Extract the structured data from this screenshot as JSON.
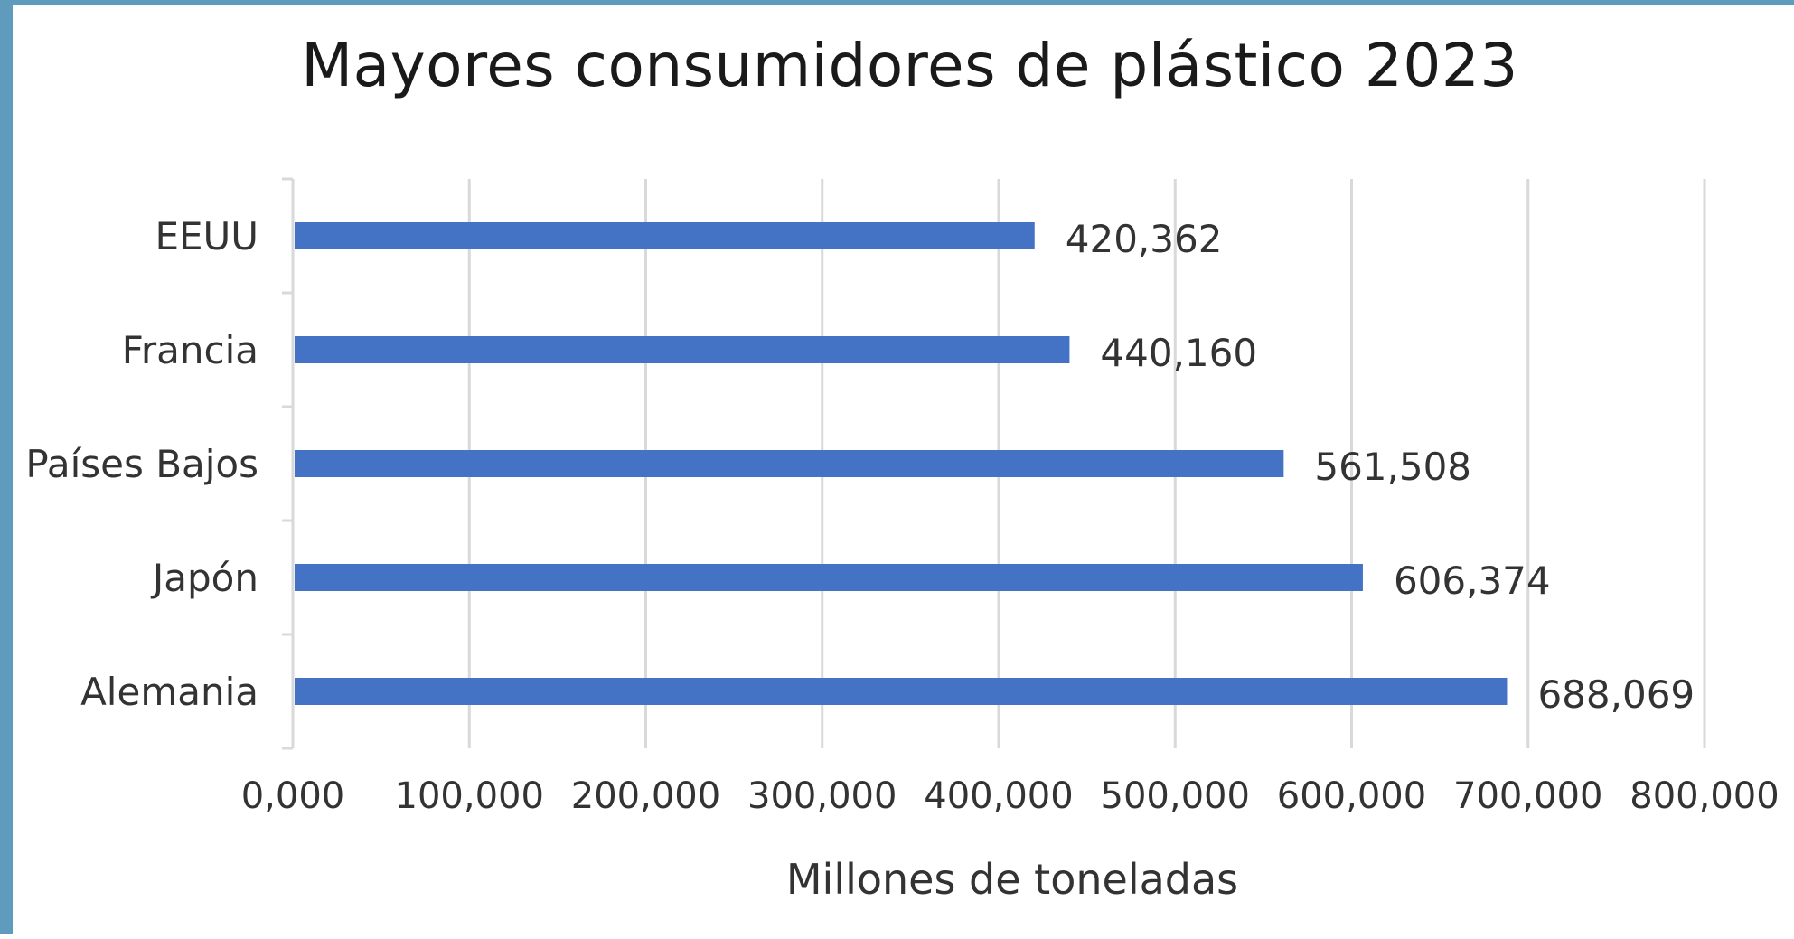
{
  "chart_data": {
    "type": "bar",
    "orientation": "horizontal",
    "title": "Mayores consumidores de plástico 2023",
    "xlabel": "Millones de toneladas",
    "ylabel": "",
    "categories": [
      "EEUU",
      "Francia",
      "Países Bajos",
      "Japón",
      "Alemania"
    ],
    "values": [
      420.362,
      440.16,
      561.508,
      606.374,
      688.069
    ],
    "value_labels": [
      "420,362",
      "440,160",
      "561,508",
      "606,374",
      "688,069"
    ],
    "xlim": [
      0,
      800
    ],
    "xticks": [
      0,
      100,
      200,
      300,
      400,
      500,
      600,
      700,
      800
    ],
    "xtick_labels": [
      "0,000",
      "100,000",
      "200,000",
      "300,000",
      "400,000",
      "500,000",
      "600,000",
      "700,000",
      "800,000"
    ],
    "grid": "vertical",
    "legend": "none",
    "colors": {
      "bar": "#4472c4",
      "grid": "#d9d9d9",
      "frame": "#5f9bbd"
    }
  }
}
